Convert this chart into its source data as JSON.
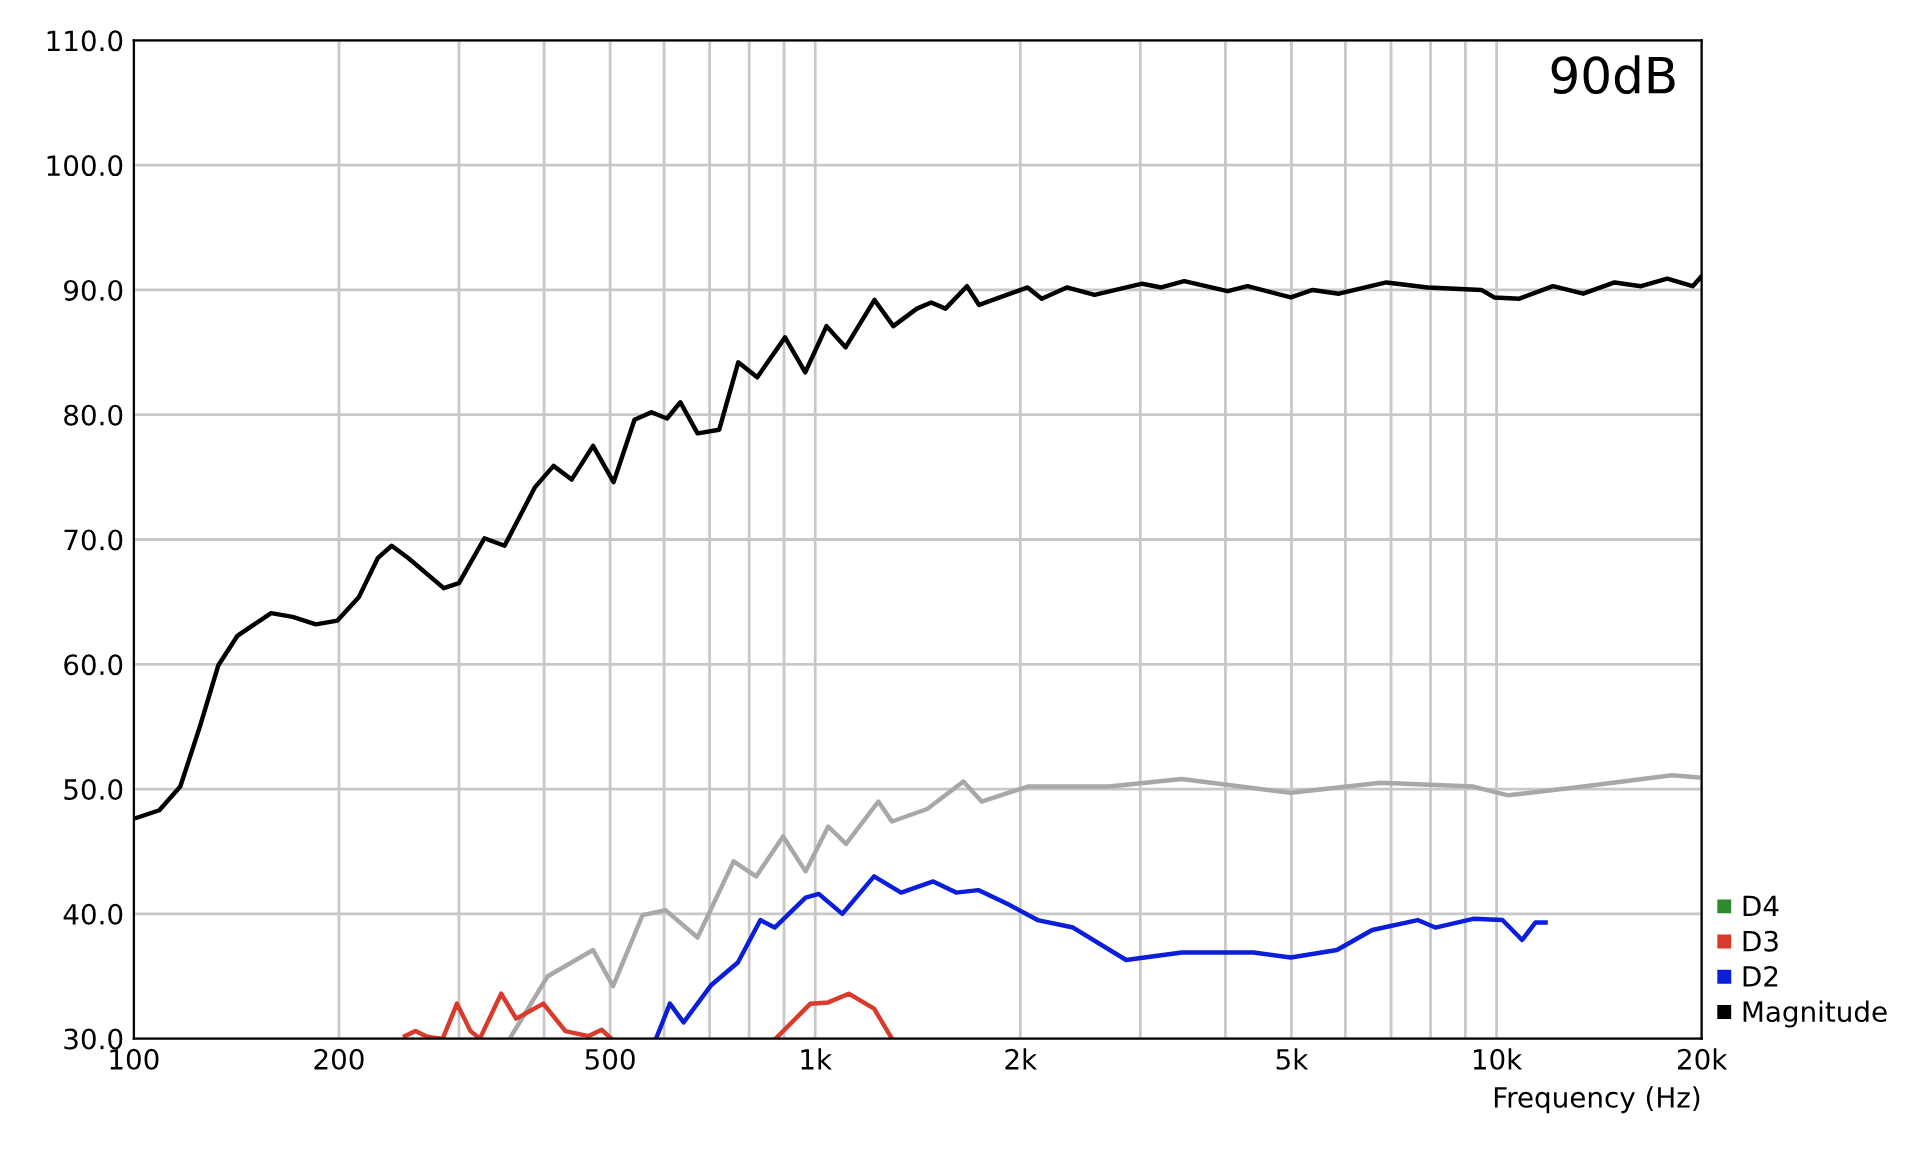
{
  "chart_data": {
    "type": "line",
    "xlabel": "Frequency (Hz)",
    "log": "x",
    "xlim": [
      100,
      20000
    ],
    "ylim": [
      30,
      110
    ],
    "xticks": [
      100,
      {
        "value": 200,
        "label": "200"
      },
      {
        "value": 300,
        "label": null
      },
      {
        "value": 400,
        "label": null
      },
      {
        "value": 500,
        "label": "500"
      },
      {
        "value": 600,
        "label": null
      },
      {
        "value": 700,
        "label": null
      },
      {
        "value": 800,
        "label": null
      },
      {
        "value": 900,
        "label": null
      },
      {
        "value": 1000,
        "label": "1k"
      },
      {
        "value": 2000,
        "label": "2k"
      },
      {
        "value": 3000,
        "label": null
      },
      {
        "value": 4000,
        "label": null
      },
      {
        "value": 5000,
        "label": "5k"
      },
      {
        "value": 6000,
        "label": null
      },
      {
        "value": 7000,
        "label": null
      },
      {
        "value": 8000,
        "label": null
      },
      {
        "value": 9000,
        "label": null
      },
      {
        "value": 10000,
        "label": "10k"
      },
      {
        "value": 20000,
        "label": "20k"
      }
    ],
    "yticks": [
      {
        "value": 30,
        "label": "30.0"
      },
      {
        "value": 40,
        "label": "40.0"
      },
      {
        "value": 50,
        "label": "50.0"
      },
      {
        "value": 60,
        "label": "60.0"
      },
      {
        "value": 70,
        "label": "70.0"
      },
      {
        "value": 80,
        "label": "80.0"
      },
      {
        "value": 90,
        "label": "90.0"
      },
      {
        "value": 100,
        "label": "100.0"
      },
      {
        "value": 110,
        "label": "110.0"
      }
    ],
    "grid": true,
    "legend": "bottom right",
    "marker": "none",
    "line_style": "solid",
    "annotations": [
      "90dB"
    ],
    "series": [
      {
        "color": "#a8a8a8",
        "x": [
          358,
          405,
          472,
          505,
          558,
          603,
          672,
          759,
          819,
          897,
          968,
          1045,
          1110,
          1238,
          1296,
          1460,
          1650,
          1755,
          2050,
          2700,
          3450,
          4990,
          6760,
          9240,
          10400,
          13400,
          18100,
          20000
        ],
        "values": [
          30.2,
          35.0,
          37.1,
          34.2,
          39.9,
          40.3,
          38.1,
          44.2,
          43.0,
          46.2,
          43.4,
          47.0,
          45.6,
          49.0,
          47.4,
          48.4,
          50.6,
          49.0,
          50.2,
          50.2,
          50.8,
          49.7,
          50.5,
          50.2,
          49.5,
          50.2,
          51.1,
          50.9
        ]
      },
      {
        "name": "D4",
        "color": "#2e8b2e"
      },
      {
        "name": "D3",
        "color": "#d93a2b",
        "x": [
          250,
          259,
          268,
          274,
          284,
          298,
          312,
          322,
          346,
          364,
          399,
          430,
          465,
          486,
          502,
          700,
          875,
          984,
          1045,
          1120,
          1220,
          1296
        ],
        "values": [
          30.2,
          30.6,
          30.2,
          30.1,
          30.0,
          32.8,
          30.6,
          30.0,
          33.6,
          31.6,
          32.8,
          30.6,
          30.2,
          30.7,
          30.0,
          null,
          30.0,
          32.8,
          32.9,
          33.6,
          32.4,
          30.0
        ]
      },
      {
        "name": "D2",
        "color": "#0a1edc",
        "x": [
          584,
          612,
          641,
          704,
          770,
          831,
          872,
          968,
          1012,
          1096,
          1220,
          1337,
          1490,
          1610,
          1735,
          1930,
          2120,
          2390,
          2860,
          3450,
          4400,
          4990,
          5830,
          6570,
          7660,
          8130,
          9240,
          10200,
          10900,
          11400,
          11800
        ],
        "values": [
          30.0,
          32.8,
          31.3,
          34.3,
          36.1,
          39.5,
          38.9,
          41.3,
          41.6,
          40.0,
          43.0,
          41.7,
          42.6,
          41.7,
          41.9,
          40.7,
          39.5,
          38.9,
          36.3,
          36.9,
          36.9,
          36.5,
          37.1,
          38.7,
          39.5,
          38.9,
          39.6,
          39.5,
          37.9,
          39.3,
          39.3
        ]
      },
      {
        "name": "Magnitude",
        "color": "#000000",
        "x": [
          101,
          109,
          117,
          125,
          133,
          142,
          159,
          171,
          185,
          199,
          214,
          228,
          239,
          253,
          285,
          300,
          327,
          350,
          388,
          413,
          439,
          472,
          506,
          543,
          575,
          606,
          634,
          672,
          723,
          771,
          822,
          903,
          967,
          1039,
          1108,
          1222,
          1302,
          1410,
          1480,
          1553,
          1670,
          1740,
          1910,
          2050,
          2150,
          2340,
          2570,
          3020,
          3220,
          3480,
          4030,
          4310,
          4990,
          5370,
          5870,
          6890,
          7930,
          9500,
          9920,
          10800,
          12100,
          13400,
          14900,
          16300,
          17800,
          19400,
          20000
        ],
        "values": [
          47.7,
          48.3,
          50.2,
          55.0,
          59.9,
          62.3,
          64.1,
          63.8,
          63.2,
          63.5,
          65.4,
          68.5,
          69.5,
          68.5,
          66.1,
          66.5,
          70.1,
          69.5,
          74.2,
          75.9,
          74.8,
          77.5,
          74.6,
          79.6,
          80.2,
          79.7,
          81.0,
          78.5,
          78.8,
          84.2,
          83.0,
          86.2,
          83.4,
          87.1,
          85.4,
          89.2,
          87.1,
          88.5,
          89.0,
          88.5,
          90.3,
          88.8,
          89.6,
          90.2,
          89.3,
          90.2,
          89.6,
          90.5,
          90.2,
          90.7,
          89.9,
          90.3,
          89.4,
          90.0,
          89.7,
          90.6,
          90.2,
          90.0,
          89.4,
          89.3,
          90.3,
          89.7,
          90.6,
          90.3,
          90.9,
          90.3,
          91.1
        ]
      }
    ]
  }
}
